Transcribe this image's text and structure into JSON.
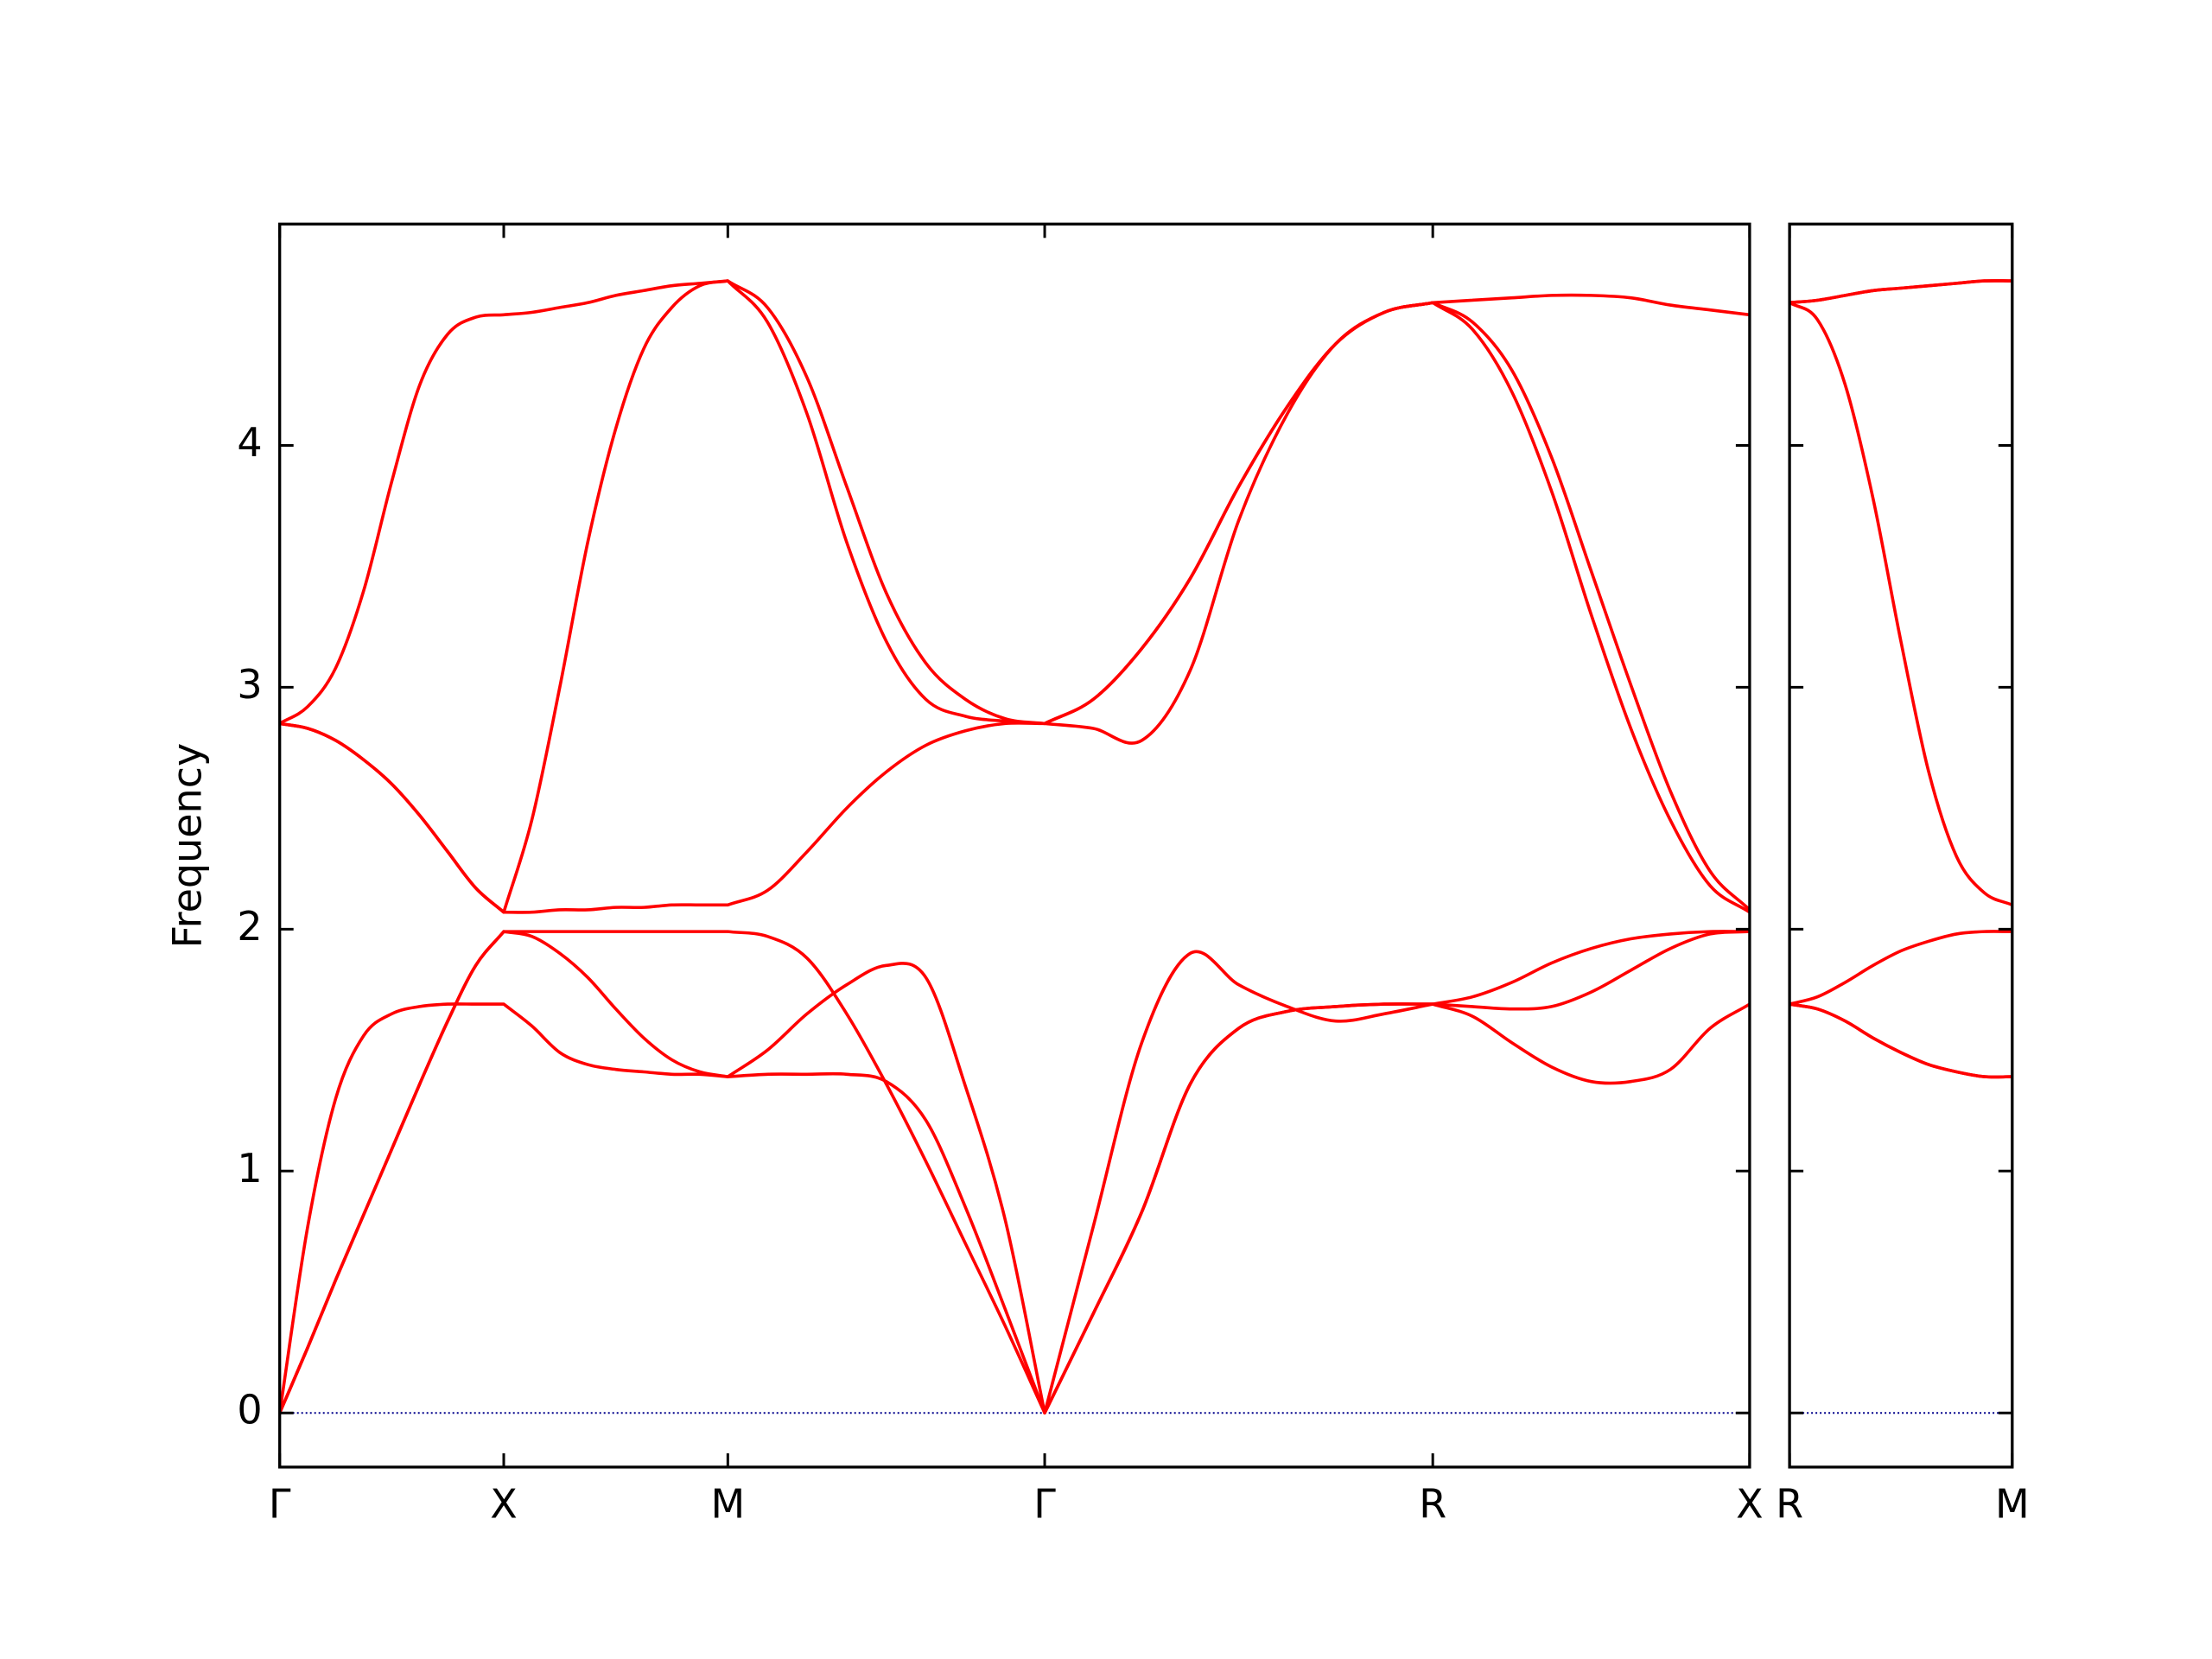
{
  "chart_data": [
    {
      "type": "line",
      "ylabel": "Frequency",
      "x": [
        0,
        0.0625,
        0.125,
        0.1875,
        0.25,
        0.3125,
        0.375,
        0.4375,
        0.5,
        0.5625,
        0.625,
        0.6875,
        0.75,
        0.8125,
        0.875,
        0.9375,
        1.0,
        1.0884,
        1.1768,
        1.2652,
        1.3536,
        1.4419,
        1.5303,
        1.6187,
        1.7071,
        1.8154,
        1.9236,
        2.0319,
        2.1401,
        2.2484,
        2.3566,
        2.4649,
        2.5731,
        2.6615,
        2.7499,
        2.8383,
        2.9267,
        3.015,
        3.1034,
        3.1918,
        3.2802
      ],
      "xlim": [
        0,
        3.2802
      ],
      "xticks": [
        {
          "value": 0,
          "label": "Γ"
        },
        {
          "value": 0.5,
          "label": "X"
        },
        {
          "value": 1.0,
          "label": "M"
        },
        {
          "value": 1.7071,
          "label": "Γ"
        },
        {
          "value": 2.5731,
          "label": "R"
        },
        {
          "value": 3.2802,
          "label": "X"
        }
      ],
      "ylim": [
        -0.224,
        4.915
      ],
      "yticks": [
        0,
        1,
        2,
        3,
        4
      ],
      "reference_line": {
        "y": 0,
        "color": "#00008b",
        "style": "dotted"
      },
      "series": [
        {
          "color": "#ff0000",
          "values": [
            0,
            0.77,
            1.3,
            1.56,
            1.65,
            1.68,
            1.69,
            1.69,
            1.69,
            1.6,
            1.49,
            1.44,
            1.42,
            1.41,
            1.4,
            1.4,
            1.39,
            1.4,
            1.4,
            1.4,
            1.37,
            1.21,
            0.85,
            0.43,
            0,
            0.77,
            1.53,
            1.9,
            1.77,
            1.68,
            1.62,
            1.65,
            1.69,
            1.64,
            1.53,
            1.43,
            1.37,
            1.37,
            1.42,
            1.59,
            1.69
          ]
        },
        {
          "color": "#ff0000",
          "values": [
            0,
            0.27,
            0.55,
            0.82,
            1.09,
            1.36,
            1.62,
            1.85,
            1.99,
            1.97,
            1.9,
            1.8,
            1.67,
            1.55,
            1.46,
            1.41,
            1.39,
            1.5,
            1.65,
            1.77,
            1.85,
            1.8,
            1.35,
            0.8,
            0,
            0.41,
            0.83,
            1.36,
            1.59,
            1.66,
            1.68,
            1.69,
            1.69,
            1.72,
            1.78,
            1.86,
            1.92,
            1.96,
            1.98,
            1.99,
            1.99
          ]
        },
        {
          "color": "#ff0000",
          "values": [
            0,
            0.27,
            0.55,
            0.82,
            1.09,
            1.36,
            1.62,
            1.85,
            1.99,
            1.99,
            1.99,
            1.99,
            1.99,
            1.99,
            1.99,
            1.99,
            1.99,
            1.97,
            1.88,
            1.65,
            1.36,
            1.04,
            0.7,
            0.36,
            0,
            0.41,
            0.83,
            1.36,
            1.59,
            1.66,
            1.68,
            1.69,
            1.69,
            1.68,
            1.67,
            1.68,
            1.74,
            1.83,
            1.92,
            1.98,
            1.99
          ]
        },
        {
          "color": "#ff0000",
          "values": [
            2.85,
            2.83,
            2.78,
            2.7,
            2.6,
            2.47,
            2.32,
            2.17,
            2.07,
            2.07,
            2.08,
            2.08,
            2.09,
            2.09,
            2.1,
            2.1,
            2.1,
            2.16,
            2.32,
            2.5,
            2.65,
            2.76,
            2.82,
            2.85,
            2.85,
            2.83,
            2.78,
            3.07,
            3.69,
            4.13,
            4.42,
            4.55,
            4.59,
            4.6,
            4.61,
            4.62,
            4.62,
            4.61,
            4.58,
            4.56,
            4.54
          ]
        },
        {
          "color": "#ff0000",
          "values": [
            2.85,
            2.83,
            2.78,
            2.7,
            2.6,
            2.47,
            2.32,
            2.17,
            2.07,
            2.45,
            3.0,
            3.6,
            4.07,
            4.4,
            4.57,
            4.66,
            4.68,
            4.51,
            4.13,
            3.6,
            3.19,
            2.95,
            2.88,
            2.86,
            2.85,
            2.95,
            3.16,
            3.45,
            3.83,
            4.16,
            4.42,
            4.55,
            4.59,
            4.51,
            4.31,
            3.95,
            3.48,
            3.01,
            2.57,
            2.24,
            2.08
          ]
        },
        {
          "color": "#ff0000",
          "values": [
            2.85,
            2.92,
            3.08,
            3.4,
            3.85,
            4.25,
            4.46,
            4.53,
            4.54,
            4.55,
            4.57,
            4.59,
            4.62,
            4.64,
            4.66,
            4.67,
            4.68,
            4.57,
            4.28,
            3.83,
            3.39,
            3.1,
            2.95,
            2.87,
            2.85,
            2.95,
            3.16,
            3.45,
            3.83,
            4.16,
            4.42,
            4.55,
            4.59,
            4.48,
            4.22,
            3.81,
            3.3,
            2.83,
            2.45,
            2.18,
            2.07
          ]
        }
      ]
    },
    {
      "type": "line",
      "sharey": true,
      "x": [
        3.2802,
        3.3427,
        3.4052,
        3.4677,
        3.5302,
        3.5927,
        3.6552,
        3.7177,
        3.7802
      ],
      "xlim": [
        3.2802,
        3.7802
      ],
      "xticks": [
        {
          "value": 3.2802,
          "label": "R"
        },
        {
          "value": 3.7802,
          "label": "M"
        }
      ],
      "reference_line": {
        "y": 0,
        "color": "#00008b",
        "style": "dotted"
      },
      "series": [
        {
          "color": "#ff0000",
          "values": [
            1.69,
            1.67,
            1.62,
            1.55,
            1.49,
            1.44,
            1.41,
            1.39,
            1.39
          ]
        },
        {
          "color": "#ff0000",
          "values": [
            1.69,
            1.67,
            1.62,
            1.55,
            1.49,
            1.44,
            1.41,
            1.39,
            1.39
          ]
        },
        {
          "color": "#ff0000",
          "values": [
            1.69,
            1.72,
            1.78,
            1.85,
            1.91,
            1.95,
            1.98,
            1.99,
            1.99
          ]
        },
        {
          "color": "#ff0000",
          "values": [
            4.59,
            4.52,
            4.25,
            3.78,
            3.19,
            2.65,
            2.3,
            2.15,
            2.1
          ]
        },
        {
          "color": "#ff0000",
          "values": [
            4.59,
            4.6,
            4.62,
            4.64,
            4.65,
            4.66,
            4.67,
            4.68,
            4.68
          ]
        },
        {
          "color": "#ff0000",
          "values": [
            4.59,
            4.6,
            4.62,
            4.64,
            4.65,
            4.66,
            4.67,
            4.68,
            4.68
          ]
        }
      ]
    }
  ]
}
